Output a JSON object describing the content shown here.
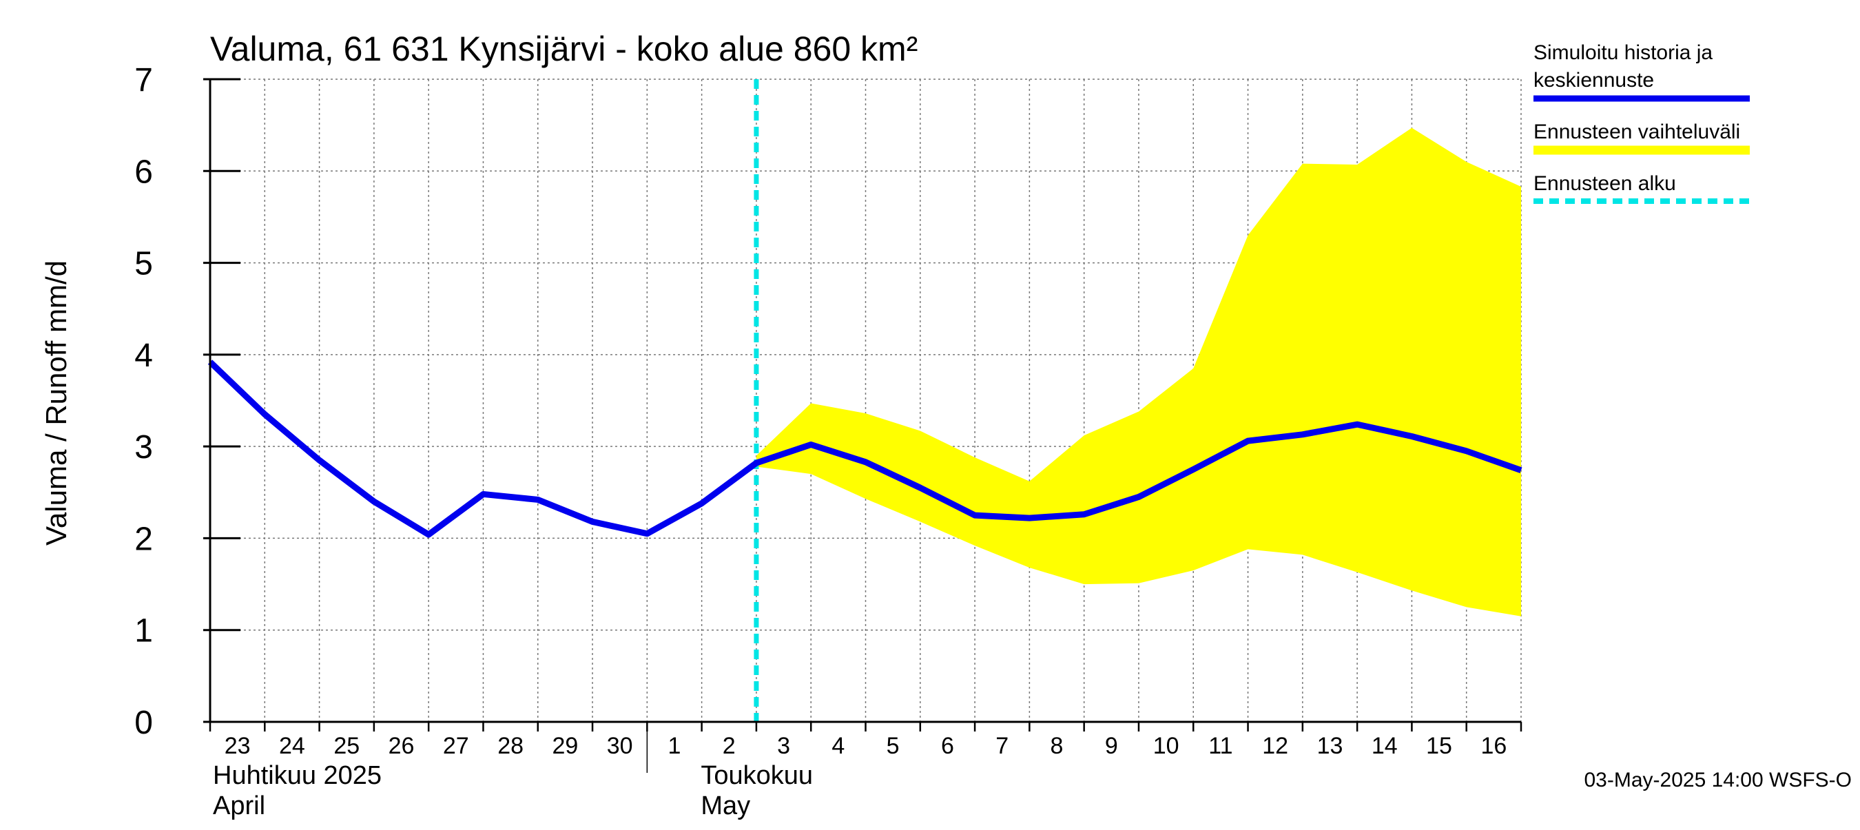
{
  "chart_data": {
    "type": "line",
    "title": "Valuma, 61 631 Kynsijärvi - koko alue 860 km²",
    "ylabel": "Valuma / Runoff    mm/d",
    "ylim": [
      0,
      7
    ],
    "yticks": [
      0,
      1,
      2,
      3,
      4,
      5,
      6,
      7
    ],
    "x_labels": [
      "23",
      "24",
      "25",
      "26",
      "27",
      "28",
      "29",
      "30",
      "1",
      "2",
      "3",
      "4",
      "5",
      "6",
      "7",
      "8",
      "9",
      "10",
      "11",
      "12",
      "13",
      "14",
      "15",
      "16"
    ],
    "month_labels": [
      {
        "line1": "Huhtikuu  2025",
        "line2": "April"
      },
      {
        "line1": "Toukokuu",
        "line2": "May"
      }
    ],
    "grid": true,
    "series": [
      {
        "name": "Simuloitu historia ja keskiennuste",
        "color": "#0000ee",
        "x": [
          "23",
          "24",
          "25",
          "26",
          "27",
          "28",
          "29",
          "30",
          "1",
          "2",
          "3",
          "4",
          "5",
          "6",
          "7",
          "8",
          "9",
          "10",
          "11",
          "12",
          "13",
          "14",
          "15",
          "16",
          "17"
        ],
        "values": [
          3.92,
          3.35,
          2.85,
          2.4,
          2.04,
          2.48,
          2.42,
          2.18,
          2.05,
          2.38,
          2.82,
          3.02,
          2.83,
          2.55,
          2.25,
          2.22,
          2.26,
          2.45,
          2.75,
          3.06,
          3.13,
          3.24,
          3.11,
          2.95,
          2.74
        ]
      }
    ],
    "band": {
      "name": "Ennusteen vaihteluväli",
      "color": "#ffff00",
      "x": [
        "3",
        "4",
        "5",
        "6",
        "7",
        "8",
        "9",
        "10",
        "11",
        "12",
        "13",
        "14",
        "15",
        "16",
        "17"
      ],
      "upper": [
        2.9,
        3.47,
        3.36,
        3.17,
        2.88,
        2.62,
        3.12,
        3.38,
        3.85,
        5.3,
        6.08,
        6.07,
        6.47,
        6.1,
        5.83
      ],
      "lower": [
        2.78,
        2.7,
        2.43,
        2.18,
        1.92,
        1.68,
        1.5,
        1.51,
        1.65,
        1.88,
        1.82,
        1.63,
        1.43,
        1.25,
        1.15
      ]
    },
    "forecast_start": {
      "name": "Ennusteen alku",
      "color": "#00e5e5",
      "x": "3"
    },
    "legend": {
      "placement": "right",
      "entries": [
        {
          "label": "Simuloitu historia ja keskiennuste",
          "color": "#0000ee",
          "style": "solid"
        },
        {
          "label": "Ennusteen vaihteluväli",
          "color": "#ffff00",
          "style": "band"
        },
        {
          "label": "Ennusteen alku",
          "color": "#00e5e5",
          "style": "dashed"
        }
      ]
    },
    "timestamp": "03-May-2025 14:00 WSFS-O"
  }
}
